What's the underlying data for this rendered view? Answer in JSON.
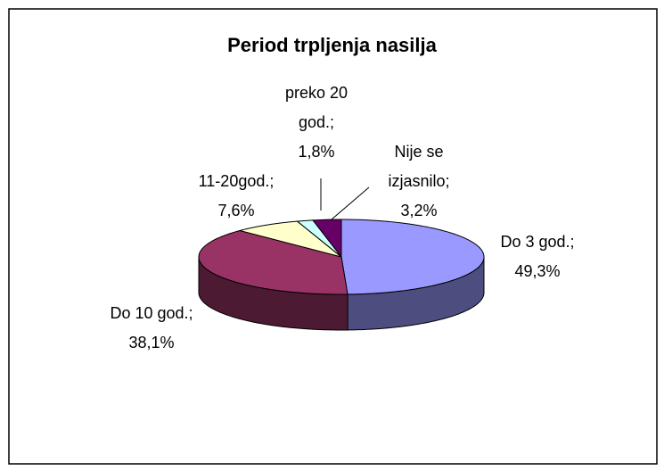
{
  "chart_data": {
    "type": "pie",
    "title": "Period trpljenja nasilja",
    "categories": [
      "Do 3 god.;",
      "Do 10 god.;",
      "11-20god.;",
      "preko 20 god.;",
      "Nije se izjasnilo;"
    ],
    "values": [
      49.3,
      38.1,
      7.6,
      1.8,
      3.2
    ],
    "value_labels": [
      "49,3%",
      "38,1%",
      "7,6%",
      "1,8%",
      "3,2%"
    ],
    "colors": [
      "#9999ff",
      "#993366",
      "#ffffcc",
      "#ccffff",
      "#660066"
    ]
  }
}
